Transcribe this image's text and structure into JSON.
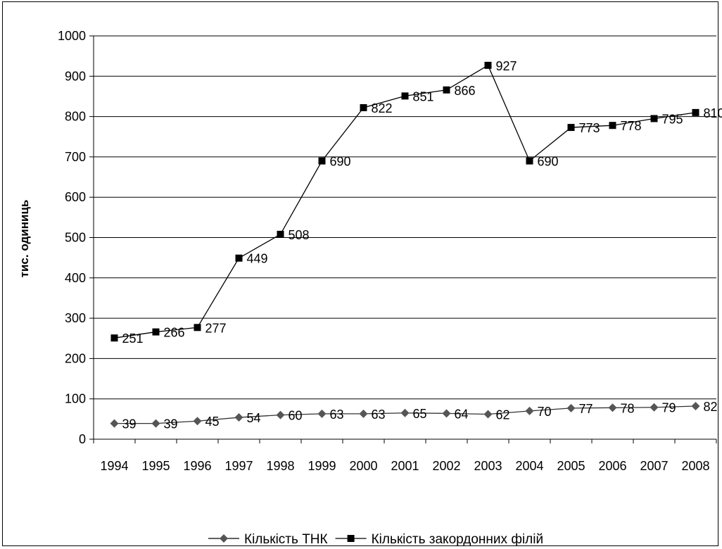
{
  "chart_data": {
    "type": "line",
    "title": "",
    "xlabel": "",
    "ylabel": "тис. одиниць",
    "ylim": [
      0,
      1000
    ],
    "yticks": [
      0,
      100,
      200,
      300,
      400,
      500,
      600,
      700,
      800,
      900,
      1000
    ],
    "categories": [
      "1994",
      "1995",
      "1996",
      "1997",
      "1998",
      "1999",
      "2000",
      "2001",
      "2002",
      "2003",
      "2004",
      "2005",
      "2006",
      "2007",
      "2008"
    ],
    "grid": "horizontal",
    "legend_position": "bottom",
    "series": [
      {
        "name": "Кількість ТНК",
        "marker": "diamond",
        "color": "#555555",
        "values": [
          39,
          39,
          45,
          54,
          60,
          63,
          63,
          65,
          64,
          62,
          70,
          77,
          78,
          79,
          82
        ]
      },
      {
        "name": "Кількість закордонних філій",
        "marker": "square",
        "color": "#000000",
        "values": [
          251,
          266,
          277,
          449,
          508,
          690,
          822,
          851,
          866,
          927,
          690,
          773,
          778,
          795,
          810
        ]
      }
    ]
  }
}
